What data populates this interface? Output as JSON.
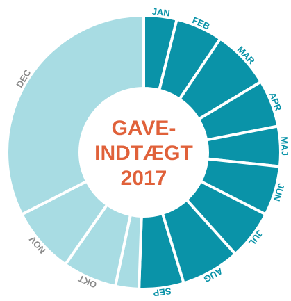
{
  "chart_data": {
    "type": "donut",
    "title_lines": [
      "GAVE-",
      "INDTÆGT",
      "2017"
    ],
    "categories": [
      "JAN",
      "FEB",
      "MAR",
      "APR",
      "MAJ",
      "JUN",
      "JUL",
      "AUG",
      "SEP",
      null,
      "OKT",
      "NOV",
      "DEC"
    ],
    "values": [
      14,
      20,
      25,
      20,
      17,
      21,
      21,
      25,
      19,
      10,
      23,
      28,
      117
    ],
    "colors": [
      "#0a93a8",
      "#0a93a8",
      "#0a93a8",
      "#0a93a8",
      "#0a93a8",
      "#0a93a8",
      "#0a93a8",
      "#0a93a8",
      "#0a93a8",
      "#a8dce3",
      "#a8dce3",
      "#a8dce3",
      "#a8dce3"
    ],
    "label_colors": [
      "#0a93a8",
      "#0a93a8",
      "#0a93a8",
      "#0a93a8",
      "#0a93a8",
      "#0a93a8",
      "#0a93a8",
      "#0a93a8",
      "#0a93a8",
      "#8a8a8a",
      "#8a8a8a",
      "#8a8a8a",
      "#8a8a8a"
    ],
    "title_color": "#e0613a"
  }
}
